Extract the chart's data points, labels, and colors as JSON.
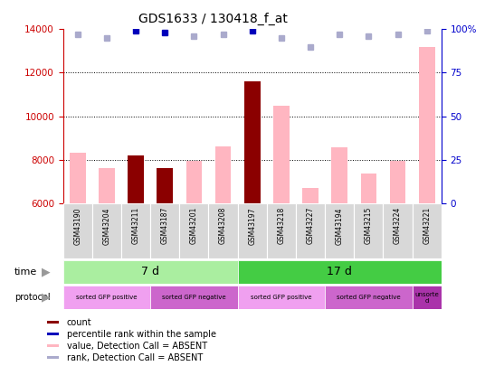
{
  "title": "GDS1633 / 130418_f_at",
  "samples": [
    "GSM43190",
    "GSM43204",
    "GSM43211",
    "GSM43187",
    "GSM43201",
    "GSM43208",
    "GSM43197",
    "GSM43218",
    "GSM43227",
    "GSM43194",
    "GSM43215",
    "GSM43224",
    "GSM43221"
  ],
  "values": [
    8300,
    7600,
    8200,
    7600,
    7950,
    8600,
    11600,
    10500,
    6700,
    8550,
    7350,
    7950,
    13200
  ],
  "counts": [
    null,
    null,
    8200,
    7600,
    null,
    null,
    11600,
    null,
    null,
    null,
    null,
    null,
    null
  ],
  "ranks": [
    97,
    95,
    99,
    98,
    96,
    97,
    99,
    95,
    90,
    97,
    96,
    97,
    99
  ],
  "rank_is_dark": [
    false,
    false,
    true,
    true,
    false,
    false,
    true,
    false,
    false,
    false,
    false,
    false,
    false
  ],
  "ylim": [
    6000,
    14000
  ],
  "yticks_left": [
    6000,
    8000,
    10000,
    12000,
    14000
  ],
  "yticks_right": [
    0,
    25,
    50,
    75,
    100
  ],
  "bar_color_pink": "#FFB6C1",
  "bar_color_dark": "#8B0000",
  "rank_color_dark": "#0000BB",
  "rank_color_light": "#AAAACC",
  "left_axis_color": "#CC0000",
  "right_axis_color": "#0000CC",
  "time_groups": [
    {
      "label": "7 d",
      "start": 0,
      "end": 6,
      "color": "#AAEEA0"
    },
    {
      "label": "17 d",
      "start": 6,
      "end": 13,
      "color": "#44CC44"
    }
  ],
  "protocol_groups": [
    {
      "label": "sorted GFP positive",
      "start": 0,
      "end": 3,
      "color": "#F0A0F0"
    },
    {
      "label": "sorted GFP negative",
      "start": 3,
      "end": 6,
      "color": "#CC66CC"
    },
    {
      "label": "sorted GFP positive",
      "start": 6,
      "end": 9,
      "color": "#F0A0F0"
    },
    {
      "label": "sorted GFP negative",
      "start": 9,
      "end": 12,
      "color": "#CC66CC"
    },
    {
      "label": "unsorte\nd",
      "start": 12,
      "end": 13,
      "color": "#AA33AA"
    }
  ],
  "legend_items": [
    {
      "label": "count",
      "color": "#8B0000"
    },
    {
      "label": "percentile rank within the sample",
      "color": "#0000BB"
    },
    {
      "label": "value, Detection Call = ABSENT",
      "color": "#FFB6C1"
    },
    {
      "label": "rank, Detection Call = ABSENT",
      "color": "#AAAACC"
    }
  ]
}
